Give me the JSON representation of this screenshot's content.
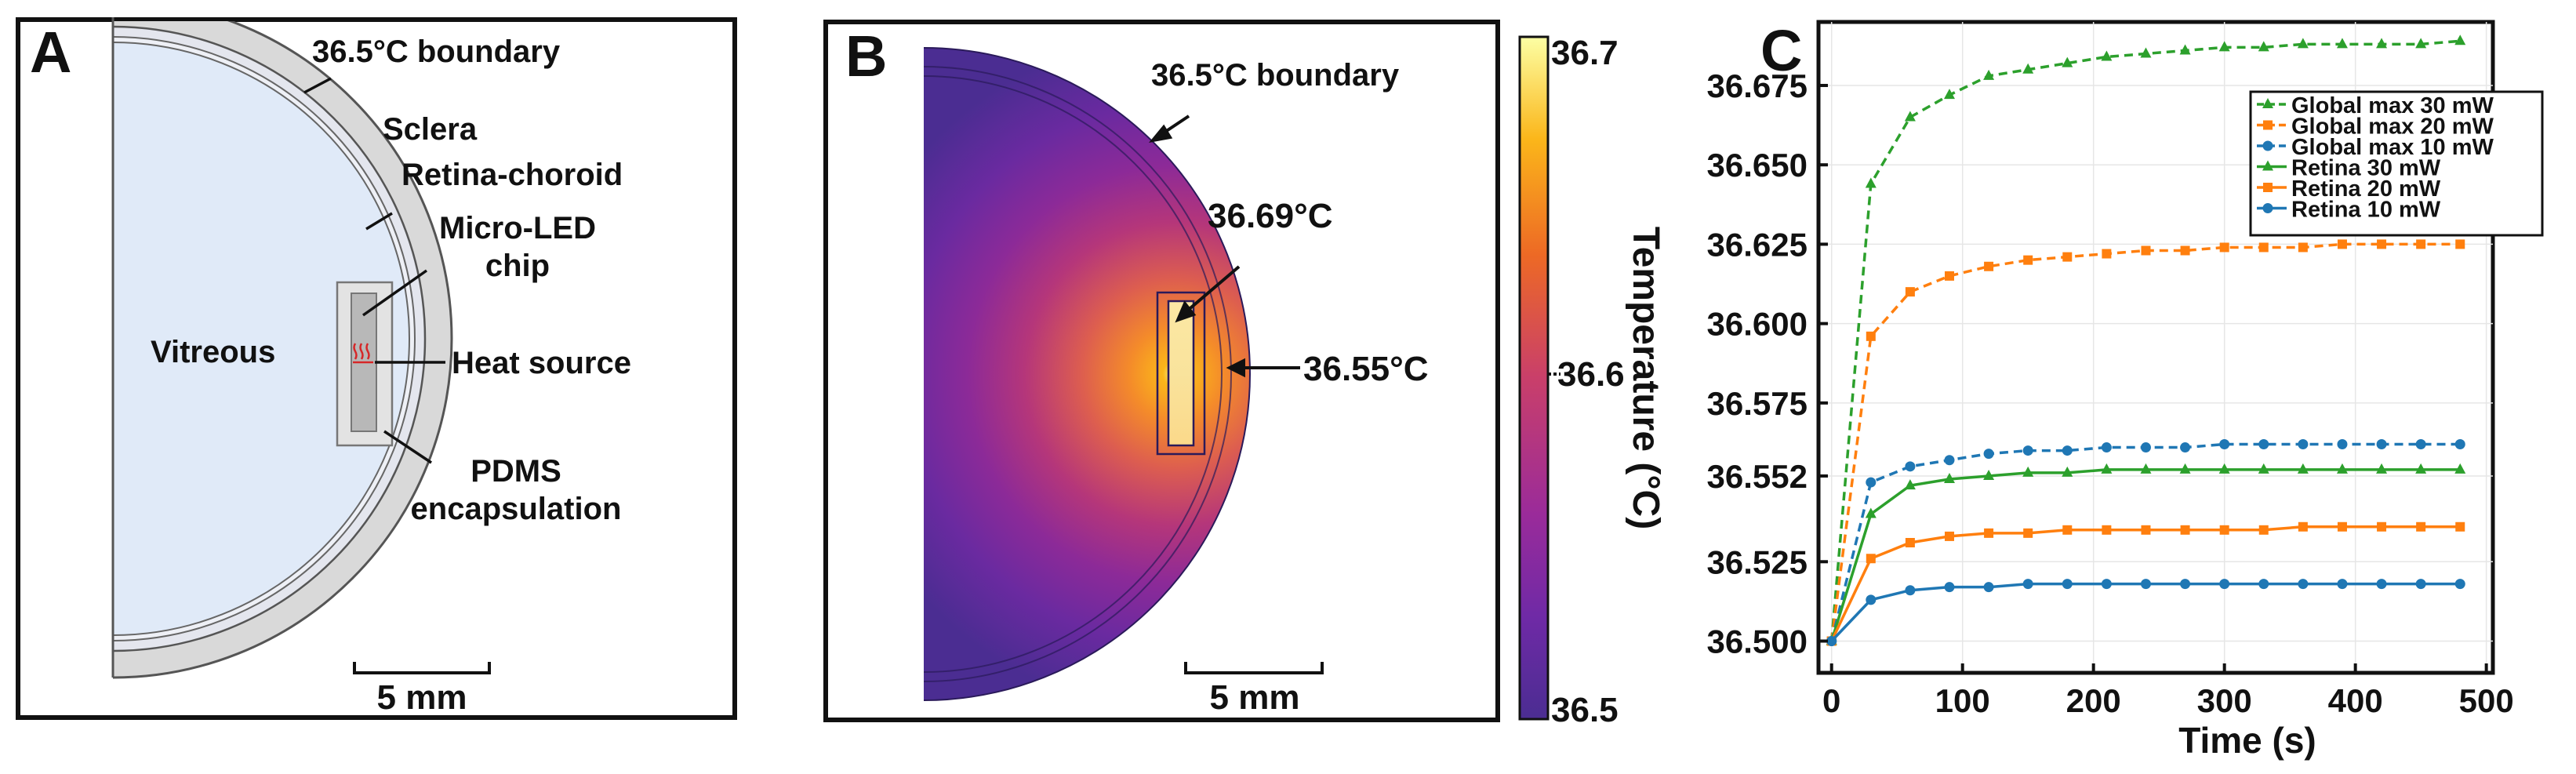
{
  "panel_a": {
    "letter": "A",
    "boundary": "36.5°C boundary",
    "sclera": "Sclera",
    "retina": "Retina-choroid",
    "chip_line1": "Micro-LED",
    "chip_line2": "chip",
    "vitreous": "Vitreous",
    "heat_source": "Heat source",
    "pdms_line1": "PDMS",
    "pdms_line2": "encapsulation",
    "scale": "5 mm",
    "heat_icon": "heat-waves-icon"
  },
  "panel_b": {
    "letter": "B",
    "boundary": "36.5°C boundary",
    "max_label": "36.69°C",
    "retina_label": "36.55°C",
    "scale": "5 mm",
    "colorbar": {
      "top": "36.7",
      "mid": "36.6",
      "bottom": "36.5",
      "title": "Temperature (°C)",
      "colormap": "plasma"
    }
  },
  "panel_c": {
    "letter": "C"
  },
  "chart_data": {
    "type": "line",
    "xlabel": "Time (s)",
    "ylabel": "",
    "xlim": [
      -10,
      505
    ],
    "ylim": [
      36.49,
      36.695
    ],
    "xticks": [
      0,
      100,
      200,
      300,
      400,
      500
    ],
    "yticks": [
      36.5,
      36.525,
      36.552,
      36.575,
      36.6,
      36.625,
      36.65,
      36.675
    ],
    "ytick_labels": [
      "36.500",
      "36.525",
      "36.552",
      "36.575",
      "36.600",
      "36.625",
      "36.650",
      "36.675"
    ],
    "grid": true,
    "legend_position": "top-right",
    "x": [
      0,
      30,
      60,
      90,
      120,
      150,
      180,
      210,
      240,
      270,
      300,
      330,
      360,
      390,
      420,
      450,
      480
    ],
    "series": [
      {
        "name": "Global max 30 mW",
        "color": "#2ca02c",
        "marker": "triangle",
        "dashed": true,
        "values": [
          36.5,
          36.644,
          36.665,
          36.672,
          36.678,
          36.68,
          36.682,
          36.684,
          36.685,
          36.686,
          36.687,
          36.687,
          36.688,
          36.688,
          36.688,
          36.688,
          36.689
        ]
      },
      {
        "name": "Global max 20 mW",
        "color": "#ff7f0e",
        "marker": "square",
        "dashed": true,
        "values": [
          36.5,
          36.596,
          36.61,
          36.615,
          36.618,
          36.62,
          36.621,
          36.622,
          36.623,
          36.623,
          36.624,
          36.624,
          36.624,
          36.625,
          36.625,
          36.625,
          36.625
        ]
      },
      {
        "name": "Global max 10 mW",
        "color": "#1f77b4",
        "marker": "circle",
        "dashed": true,
        "values": [
          36.5,
          36.55,
          36.555,
          36.557,
          36.559,
          36.56,
          36.56,
          36.561,
          36.561,
          36.561,
          36.562,
          36.562,
          36.562,
          36.562,
          36.562,
          36.562,
          36.562
        ]
      },
      {
        "name": "Retina 30 mW",
        "color": "#2ca02c",
        "marker": "triangle",
        "dashed": false,
        "values": [
          36.5,
          36.54,
          36.549,
          36.551,
          36.552,
          36.553,
          36.553,
          36.554,
          36.554,
          36.554,
          36.554,
          36.554,
          36.554,
          36.554,
          36.554,
          36.554,
          36.554
        ]
      },
      {
        "name": "Retina 20 mW",
        "color": "#ff7f0e",
        "marker": "square",
        "dashed": false,
        "values": [
          36.5,
          36.526,
          36.531,
          36.533,
          36.534,
          36.534,
          36.535,
          36.535,
          36.535,
          36.535,
          36.535,
          36.535,
          36.536,
          36.536,
          36.536,
          36.536,
          36.536
        ]
      },
      {
        "name": "Retina 10 mW",
        "color": "#1f77b4",
        "marker": "circle",
        "dashed": false,
        "values": [
          36.5,
          36.513,
          36.516,
          36.517,
          36.517,
          36.518,
          36.518,
          36.518,
          36.518,
          36.518,
          36.518,
          36.518,
          36.518,
          36.518,
          36.518,
          36.518,
          36.518
        ]
      }
    ]
  }
}
